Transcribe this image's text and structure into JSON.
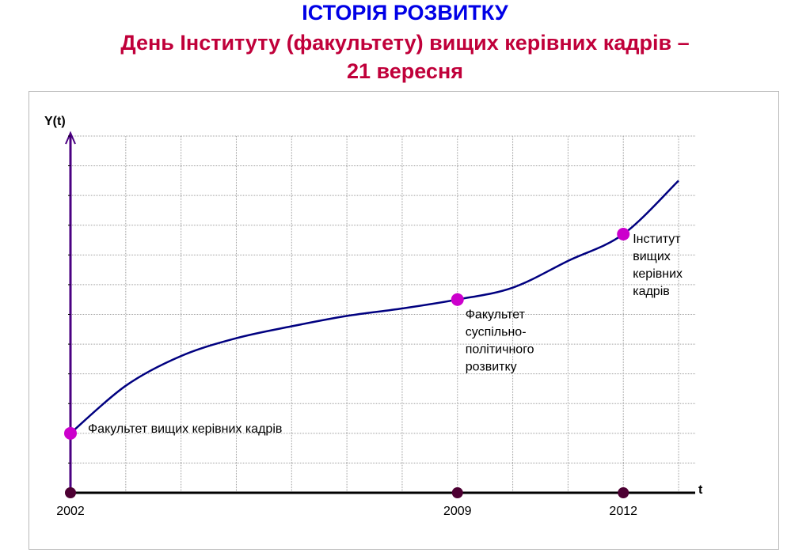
{
  "header": {
    "title": "ІСТОРІЯ РОЗВИТКУ",
    "subtitle_line1": "День Інституту (факультету) вищих керівних кадрів –",
    "subtitle_line2": "21 вересня"
  },
  "colors": {
    "title": "#0000e6",
    "subtitle": "#c0003a",
    "curve": "#000080",
    "axis": "#4b0082",
    "event_marker": "#cc00cc",
    "year_marker": "#4d0033",
    "grid": "#a0a0a0"
  },
  "chart_data": {
    "type": "line",
    "title": "",
    "xlabel": "t",
    "ylabel": "Y(t)",
    "xlim": [
      2002,
      2013.3
    ],
    "ylim": [
      0,
      12
    ],
    "grid": true,
    "y_tick_labels": false,
    "x_ticks": [
      2002,
      2009,
      2012
    ],
    "x_tick_labels": [
      "2002",
      "2009",
      "2012"
    ],
    "series": [
      {
        "curve_points": [
          {
            "x": 2002.0,
            "y": 2.0
          },
          {
            "x": 2003.0,
            "y": 3.6
          },
          {
            "x": 2004.0,
            "y": 4.6
          },
          {
            "x": 2005.0,
            "y": 5.2
          },
          {
            "x": 2006.0,
            "y": 5.6
          },
          {
            "x": 2007.0,
            "y": 5.95
          },
          {
            "x": 2008.0,
            "y": 6.2
          },
          {
            "x": 2009.0,
            "y": 6.5
          },
          {
            "x": 2010.0,
            "y": 6.9
          },
          {
            "x": 2011.0,
            "y": 7.8
          },
          {
            "x": 2012.0,
            "y": 8.7
          },
          {
            "x": 2013.0,
            "y": 10.5
          }
        ]
      }
    ],
    "events": [
      {
        "x": 2002,
        "y": 2.0,
        "label_lines": [
          "Факультет вищих керівних кадрів"
        ]
      },
      {
        "x": 2009,
        "y": 6.5,
        "label_lines": [
          "Факультет",
          "суспільно-",
          "політичного",
          "розвитку"
        ]
      },
      {
        "x": 2012,
        "y": 8.7,
        "label_lines": [
          "Інститут",
          "вищих",
          "керівних",
          "кадрів"
        ]
      }
    ]
  }
}
